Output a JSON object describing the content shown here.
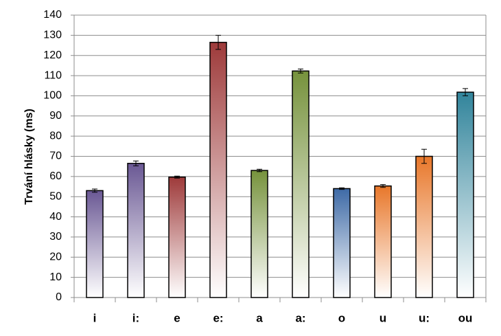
{
  "chart_data": {
    "type": "bar",
    "y_label": "Trvání hlásky (ms)",
    "categories": [
      "i",
      "i:",
      "e",
      "e:",
      "a",
      "a:",
      "o",
      "u",
      "u:",
      "ou"
    ],
    "values": [
      53,
      66.5,
      59.7,
      126.5,
      63,
      112.3,
      54,
      55.3,
      70,
      101.8
    ],
    "errors": [
      0.8,
      1.2,
      0.5,
      3.5,
      0.6,
      1,
      0.4,
      0.7,
      3.5,
      1.8
    ],
    "colors": [
      "#6a5894",
      "#6a5894",
      "#9e3a3a",
      "#9e3a3a",
      "#76923c",
      "#76923c",
      "#3e6aa6",
      "#e8772a",
      "#e8772a",
      "#31849b"
    ],
    "ylim": [
      0,
      140
    ],
    "yticks": [
      0,
      10,
      20,
      30,
      40,
      50,
      60,
      70,
      80,
      90,
      100,
      110,
      120,
      130,
      140
    ],
    "grid": true
  }
}
